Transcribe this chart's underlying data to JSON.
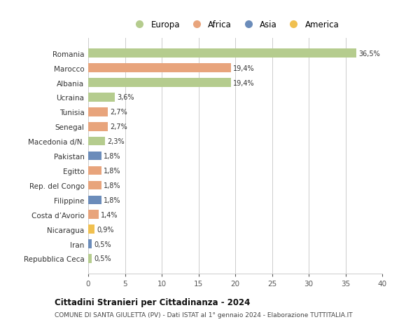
{
  "countries": [
    "Repubblica Ceca",
    "Iran",
    "Nicaragua",
    "Costa d’Avorio",
    "Filippine",
    "Rep. del Congo",
    "Egitto",
    "Pakistan",
    "Macedonia d/N.",
    "Senegal",
    "Tunisia",
    "Ucraina",
    "Albania",
    "Marocco",
    "Romania"
  ],
  "values": [
    0.5,
    0.5,
    0.9,
    1.4,
    1.8,
    1.8,
    1.8,
    1.8,
    2.3,
    2.7,
    2.7,
    3.6,
    19.4,
    19.4,
    36.5
  ],
  "labels": [
    "0,5%",
    "0,5%",
    "0,9%",
    "1,4%",
    "1,8%",
    "1,8%",
    "1,8%",
    "1,8%",
    "2,3%",
    "2,7%",
    "2,7%",
    "3,6%",
    "19,4%",
    "19,4%",
    "36,5%"
  ],
  "continents": [
    "Europa",
    "Asia",
    "America",
    "Africa",
    "Asia",
    "Africa",
    "Africa",
    "Asia",
    "Europa",
    "Africa",
    "Africa",
    "Europa",
    "Europa",
    "Africa",
    "Europa"
  ],
  "continent_colors": {
    "Europa": "#b5cc8e",
    "Africa": "#e8a47c",
    "Asia": "#6b8cba",
    "America": "#f0c050"
  },
  "legend_order": [
    "Europa",
    "Africa",
    "Asia",
    "America"
  ],
  "legend_colors": [
    "#b5cc8e",
    "#e8a47c",
    "#6b8cba",
    "#f0c050"
  ],
  "xlim": [
    0,
    40
  ],
  "xticks": [
    0,
    5,
    10,
    15,
    20,
    25,
    30,
    35,
    40
  ],
  "title": "Cittadini Stranieri per Cittadinanza - 2024",
  "subtitle": "COMUNE DI SANTA GIULETTA (PV) - Dati ISTAT al 1° gennaio 2024 - Elaborazione TUTTITALIA.IT",
  "background_color": "#ffffff",
  "grid_color": "#cccccc",
  "bar_height": 0.6
}
